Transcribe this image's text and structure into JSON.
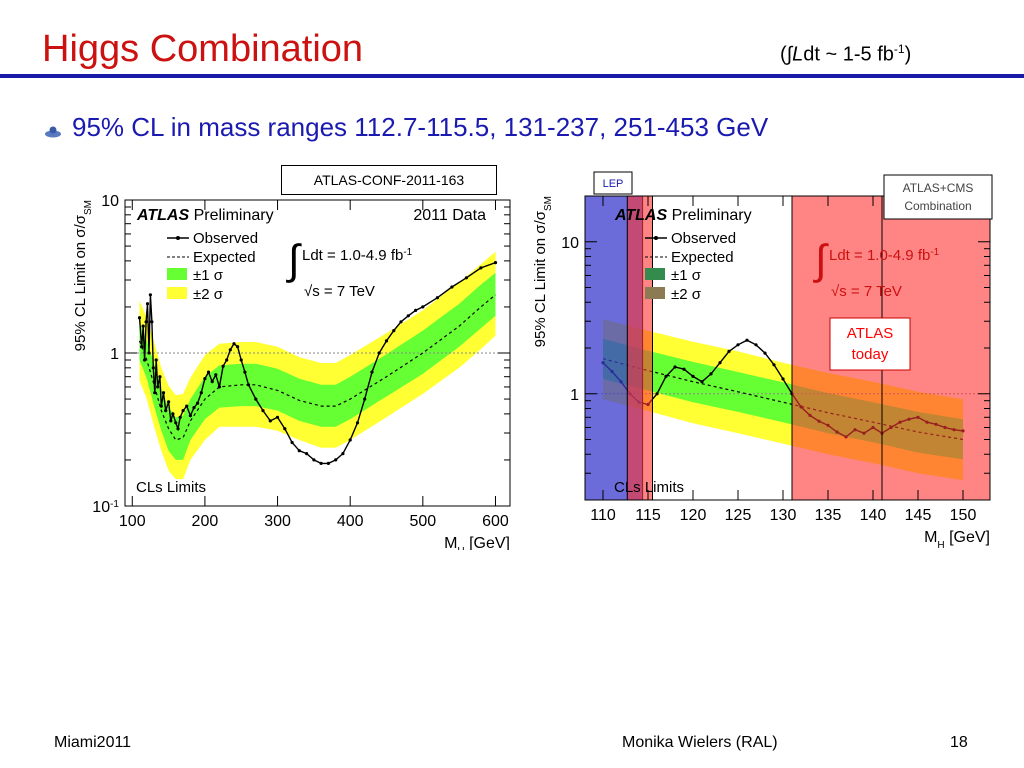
{
  "slide": {
    "title": "Higgs Combination",
    "lumi_prefix": "(∫",
    "lumi_L": "L",
    "lumi_text": "dt ~ 1-5 fb",
    "lumi_exp": "-1",
    "lumi_suffix": ")",
    "bullet": "95% CL in mass ranges 112.7-115.5, 131-237, 251-453 GeV",
    "conf_label": "ATLAS-CONF-2011-163",
    "footer_left": "Miami2011",
    "footer_center": "Monika Wielers (RAL)",
    "footer_right": "18"
  },
  "chart_data": [
    {
      "type": "line",
      "atlas": "ATLAS",
      "prelim": "Preliminary",
      "dataset": "2011 Data",
      "lumi": "Ldt = 1.0-4.9 fb",
      "lumi_exp": "-1",
      "sqrt_s": "√s = 7 TeV",
      "legend": [
        "Observed",
        "Expected",
        "±1 σ",
        "±2 σ"
      ],
      "ylabel": "95% CL Limit on σ/σ",
      "ylabel_sub": "SM",
      "xlabel": "M",
      "xlabel_sub": "H",
      "xlabel_unit": " [GeV]",
      "corner_label": "CLs Limits",
      "xlim": [
        90,
        620
      ],
      "ylim": [
        0.1,
        10
      ],
      "yscale": "log",
      "xticks": [
        100,
        200,
        300,
        400,
        500,
        600
      ],
      "yticks": [
        {
          "v": 0.1,
          "t": "10",
          "e": "-1"
        },
        {
          "v": 1,
          "t": "1",
          "e": ""
        },
        {
          "v": 10,
          "t": "10",
          "e": ""
        }
      ],
      "colors": {
        "observed": "#000000",
        "expected": "#000000",
        "band1": "#66ff33",
        "band2": "#ffff33",
        "sm_line": "#888888"
      },
      "expected": [
        [
          110,
          1.2
        ],
        [
          120,
          0.9
        ],
        [
          130,
          0.62
        ],
        [
          140,
          0.42
        ],
        [
          150,
          0.32
        ],
        [
          160,
          0.27
        ],
        [
          170,
          0.28
        ],
        [
          180,
          0.36
        ],
        [
          200,
          0.5
        ],
        [
          220,
          0.6
        ],
        [
          250,
          0.62
        ],
        [
          270,
          0.62
        ],
        [
          300,
          0.57
        ],
        [
          330,
          0.49
        ],
        [
          360,
          0.45
        ],
        [
          380,
          0.45
        ],
        [
          400,
          0.5
        ],
        [
          450,
          0.7
        ],
        [
          500,
          1.0
        ],
        [
          550,
          1.5
        ],
        [
          580,
          2.0
        ],
        [
          600,
          2.4
        ]
      ],
      "band1": [
        [
          110,
          0.9,
          1.6
        ],
        [
          120,
          0.68,
          1.2
        ],
        [
          130,
          0.45,
          0.85
        ],
        [
          140,
          0.31,
          0.58
        ],
        [
          150,
          0.23,
          0.44
        ],
        [
          160,
          0.2,
          0.38
        ],
        [
          170,
          0.2,
          0.39
        ],
        [
          180,
          0.27,
          0.5
        ],
        [
          200,
          0.37,
          0.7
        ],
        [
          220,
          0.44,
          0.83
        ],
        [
          250,
          0.45,
          0.85
        ],
        [
          270,
          0.45,
          0.85
        ],
        [
          300,
          0.42,
          0.79
        ],
        [
          330,
          0.36,
          0.68
        ],
        [
          360,
          0.33,
          0.62
        ],
        [
          380,
          0.33,
          0.62
        ],
        [
          400,
          0.37,
          0.7
        ],
        [
          450,
          0.52,
          0.98
        ],
        [
          500,
          0.73,
          1.4
        ],
        [
          550,
          1.1,
          2.1
        ],
        [
          580,
          1.45,
          2.8
        ],
        [
          600,
          1.75,
          3.35
        ]
      ],
      "band2": [
        [
          110,
          0.66,
          2.2
        ],
        [
          120,
          0.5,
          1.7
        ],
        [
          130,
          0.33,
          1.18
        ],
        [
          140,
          0.23,
          0.8
        ],
        [
          150,
          0.17,
          0.61
        ],
        [
          160,
          0.15,
          0.53
        ],
        [
          170,
          0.15,
          0.54
        ],
        [
          180,
          0.2,
          0.69
        ],
        [
          200,
          0.27,
          0.97
        ],
        [
          220,
          0.33,
          1.15
        ],
        [
          250,
          0.33,
          1.18
        ],
        [
          270,
          0.33,
          1.18
        ],
        [
          300,
          0.31,
          1.1
        ],
        [
          330,
          0.27,
          0.94
        ],
        [
          360,
          0.24,
          0.86
        ],
        [
          380,
          0.24,
          0.86
        ],
        [
          400,
          0.27,
          0.97
        ],
        [
          450,
          0.38,
          1.35
        ],
        [
          500,
          0.54,
          1.9
        ],
        [
          550,
          0.8,
          2.9
        ],
        [
          580,
          1.06,
          3.8
        ],
        [
          600,
          1.3,
          4.6
        ]
      ],
      "observed": [
        [
          110,
          1.7
        ],
        [
          113,
          1.1
        ],
        [
          115,
          1.5
        ],
        [
          117,
          0.9
        ],
        [
          119,
          1.6
        ],
        [
          121,
          2.1
        ],
        [
          123,
          1.0
        ],
        [
          125,
          2.4
        ],
        [
          127,
          1.6
        ],
        [
          129,
          0.8
        ],
        [
          131,
          0.55
        ],
        [
          133,
          0.9
        ],
        [
          135,
          0.6
        ],
        [
          138,
          0.7
        ],
        [
          140,
          0.45
        ],
        [
          143,
          0.55
        ],
        [
          146,
          0.42
        ],
        [
          150,
          0.48
        ],
        [
          153,
          0.36
        ],
        [
          156,
          0.4
        ],
        [
          160,
          0.35
        ],
        [
          163,
          0.32
        ],
        [
          166,
          0.38
        ],
        [
          170,
          0.42
        ],
        [
          175,
          0.45
        ],
        [
          180,
          0.39
        ],
        [
          185,
          0.44
        ],
        [
          190,
          0.47
        ],
        [
          195,
          0.55
        ],
        [
          200,
          0.68
        ],
        [
          205,
          0.75
        ],
        [
          210,
          0.65
        ],
        [
          215,
          0.72
        ],
        [
          220,
          0.6
        ],
        [
          225,
          0.82
        ],
        [
          230,
          0.9
        ],
        [
          235,
          1.05
        ],
        [
          240,
          1.15
        ],
        [
          245,
          1.1
        ],
        [
          250,
          0.9
        ],
        [
          255,
          0.75
        ],
        [
          260,
          0.62
        ],
        [
          270,
          0.5
        ],
        [
          280,
          0.42
        ],
        [
          290,
          0.36
        ],
        [
          300,
          0.38
        ],
        [
          310,
          0.32
        ],
        [
          320,
          0.26
        ],
        [
          330,
          0.23
        ],
        [
          340,
          0.22
        ],
        [
          350,
          0.2
        ],
        [
          360,
          0.19
        ],
        [
          370,
          0.19
        ],
        [
          380,
          0.2
        ],
        [
          390,
          0.22
        ],
        [
          400,
          0.27
        ],
        [
          410,
          0.35
        ],
        [
          420,
          0.5
        ],
        [
          430,
          0.75
        ],
        [
          440,
          1.0
        ],
        [
          450,
          1.2
        ],
        [
          460,
          1.4
        ],
        [
          470,
          1.6
        ],
        [
          480,
          1.75
        ],
        [
          490,
          1.9
        ],
        [
          500,
          2.0
        ],
        [
          520,
          2.3
        ],
        [
          540,
          2.7
        ],
        [
          560,
          3.1
        ],
        [
          580,
          3.6
        ],
        [
          600,
          3.9
        ]
      ]
    },
    {
      "type": "line",
      "atlas": "ATLAS",
      "prelim": "Preliminary",
      "lumi": "Ldt = 1.0-4.9 fb",
      "lumi_exp": "-1",
      "sqrt_s": "√s = 7 TeV",
      "legend": [
        "Observed",
        "Expected",
        "±1 σ",
        "±2 σ"
      ],
      "ylabel": "95% CL Limit on σ/σ",
      "ylabel_sub": "SM",
      "xlabel": "M",
      "xlabel_sub": "H",
      "xlabel_unit": " [GeV]",
      "corner_label": "CLs Limits",
      "xlim": [
        108,
        153
      ],
      "ylim": [
        0.2,
        20
      ],
      "yscale": "log",
      "xticks": [
        110,
        115,
        120,
        125,
        130,
        135,
        140,
        145,
        150
      ],
      "yticks": [
        {
          "v": 1,
          "t": "1",
          "e": ""
        },
        {
          "v": 10,
          "t": "10",
          "e": ""
        }
      ],
      "colors": {
        "observed": "#000000",
        "expected": "#000000",
        "band1": "#66ff33",
        "band2": "#ffff33",
        "sm_line": "#888888",
        "lep": "#3a3acc",
        "excl": "#ff3333",
        "atlas_today": "#ff0000"
      },
      "lep_label": "LEP",
      "combination_label": [
        "ATLAS+CMS",
        "Combination"
      ],
      "atlas_today_label": [
        "ATLAS",
        "today"
      ],
      "lep_region": [
        108,
        114.4
      ],
      "atlas_cms_regions": [
        [
          112.7,
          115.5
        ],
        [
          131,
          153
        ]
      ],
      "atlas_today_region": [
        131,
        141
      ],
      "expected": [
        [
          110,
          1.7
        ],
        [
          115,
          1.42
        ],
        [
          120,
          1.2
        ],
        [
          125,
          1.03
        ],
        [
          130,
          0.88
        ],
        [
          135,
          0.75
        ],
        [
          140,
          0.65
        ],
        [
          145,
          0.56
        ],
        [
          150,
          0.5
        ]
      ],
      "band1": [
        [
          110,
          1.25,
          2.3
        ],
        [
          115,
          1.05,
          1.92
        ],
        [
          120,
          0.88,
          1.62
        ],
        [
          125,
          0.76,
          1.39
        ],
        [
          130,
          0.65,
          1.19
        ],
        [
          135,
          0.55,
          1.01
        ],
        [
          140,
          0.48,
          0.88
        ],
        [
          145,
          0.41,
          0.76
        ],
        [
          150,
          0.37,
          0.68
        ]
      ],
      "band2": [
        [
          110,
          0.92,
          3.1
        ],
        [
          115,
          0.77,
          2.6
        ],
        [
          120,
          0.64,
          2.2
        ],
        [
          125,
          0.55,
          1.9
        ],
        [
          130,
          0.47,
          1.6
        ],
        [
          135,
          0.4,
          1.37
        ],
        [
          140,
          0.35,
          1.2
        ],
        [
          145,
          0.3,
          1.03
        ],
        [
          150,
          0.27,
          0.92
        ]
      ],
      "observed": [
        [
          110,
          1.6
        ],
        [
          111,
          1.4
        ],
        [
          112,
          1.2
        ],
        [
          113,
          1.0
        ],
        [
          114,
          0.88
        ],
        [
          115,
          0.85
        ],
        [
          116,
          1.0
        ],
        [
          117,
          1.3
        ],
        [
          118,
          1.5
        ],
        [
          119,
          1.45
        ],
        [
          120,
          1.3
        ],
        [
          121,
          1.2
        ],
        [
          122,
          1.35
        ],
        [
          123,
          1.6
        ],
        [
          124,
          1.9
        ],
        [
          125,
          2.1
        ],
        [
          126,
          2.25
        ],
        [
          127,
          2.1
        ],
        [
          128,
          1.85
        ],
        [
          129,
          1.55
        ],
        [
          130,
          1.25
        ],
        [
          131,
          1.0
        ],
        [
          132,
          0.82
        ],
        [
          133,
          0.72
        ],
        [
          134,
          0.66
        ],
        [
          135,
          0.62
        ],
        [
          136,
          0.56
        ],
        [
          137,
          0.52
        ],
        [
          138,
          0.58
        ],
        [
          139,
          0.55
        ],
        [
          140,
          0.6
        ],
        [
          141,
          0.55
        ],
        [
          142,
          0.6
        ],
        [
          143,
          0.65
        ],
        [
          144,
          0.68
        ],
        [
          145,
          0.7
        ],
        [
          146,
          0.65
        ],
        [
          147,
          0.63
        ],
        [
          148,
          0.6
        ],
        [
          149,
          0.58
        ],
        [
          150,
          0.57
        ]
      ]
    }
  ]
}
